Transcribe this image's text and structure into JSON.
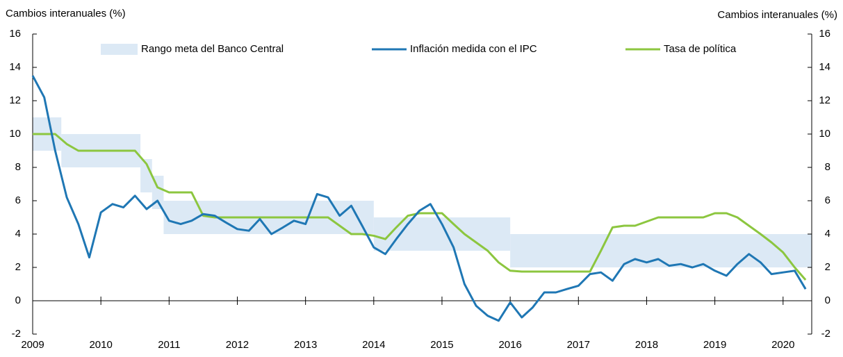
{
  "chart_data": {
    "type": "line",
    "y_label": "Cambios interanuales (%)",
    "y2_label": "Cambios interanuales (%)",
    "x": [
      2009.0,
      2009.17,
      2009.33,
      2009.5,
      2009.67,
      2009.83,
      2010.0,
      2010.17,
      2010.33,
      2010.5,
      2010.67,
      2010.83,
      2011.0,
      2011.17,
      2011.33,
      2011.5,
      2011.67,
      2011.83,
      2012.0,
      2012.17,
      2012.33,
      2012.5,
      2012.67,
      2012.83,
      2013.0,
      2013.17,
      2013.33,
      2013.5,
      2013.67,
      2013.83,
      2014.0,
      2014.17,
      2014.33,
      2014.5,
      2014.67,
      2014.83,
      2015.0,
      2015.17,
      2015.33,
      2015.5,
      2015.67,
      2015.83,
      2016.0,
      2016.17,
      2016.33,
      2016.5,
      2016.67,
      2016.83,
      2017.0,
      2017.17,
      2017.33,
      2017.5,
      2017.67,
      2017.83,
      2018.0,
      2018.17,
      2018.33,
      2018.5,
      2018.67,
      2018.83,
      2019.0,
      2019.17,
      2019.33,
      2019.5,
      2019.67,
      2019.83,
      2020.0,
      2020.17,
      2020.33
    ],
    "series": [
      {
        "name": "Inflación medida con el IPC",
        "color": "#1f77b4",
        "values": [
          13.5,
          12.2,
          9.0,
          6.2,
          4.6,
          2.6,
          5.3,
          5.8,
          5.6,
          6.3,
          5.5,
          6.0,
          4.8,
          4.6,
          4.8,
          5.2,
          5.1,
          4.7,
          4.3,
          4.2,
          4.9,
          4.0,
          4.4,
          4.8,
          4.6,
          6.4,
          6.2,
          5.1,
          5.7,
          4.5,
          3.2,
          2.8,
          3.7,
          4.6,
          5.4,
          5.8,
          4.6,
          3.2,
          1.0,
          -0.3,
          -0.9,
          -1.2,
          -0.1,
          -1.0,
          -0.4,
          0.5,
          0.5,
          0.7,
          0.9,
          1.6,
          1.7,
          1.2,
          2.2,
          2.5,
          2.3,
          2.5,
          2.1,
          2.2,
          2.0,
          2.2,
          1.8,
          1.5,
          2.2,
          2.8,
          2.3,
          1.6,
          1.7,
          1.8,
          0.7
        ]
      },
      {
        "name": "Tasa de política",
        "color": "#8cc63f",
        "values": [
          10,
          10,
          10,
          9.4,
          9,
          9,
          9,
          9,
          9,
          9,
          8.2,
          6.8,
          6.5,
          6.5,
          6.5,
          5.1,
          5,
          5,
          5,
          5,
          5,
          5,
          5,
          5,
          5,
          5,
          5,
          4.5,
          4,
          4,
          3.9,
          3.7,
          4.4,
          5.1,
          5.25,
          5.25,
          5.25,
          4.6,
          4.0,
          3.5,
          3.0,
          2.3,
          1.8,
          1.75,
          1.75,
          1.75,
          1.75,
          1.75,
          1.75,
          1.75,
          3.0,
          4.4,
          4.5,
          4.5,
          4.75,
          5.0,
          5.0,
          5.0,
          5.0,
          5.0,
          5.25,
          5.25,
          5.0,
          4.5,
          4.0,
          3.5,
          2.9,
          2.0,
          1.25
        ]
      }
    ],
    "band": {
      "name": "Rango meta del Banco Central",
      "color": "#dce9f5",
      "start": [
        2009.0,
        2009.42,
        2010.58,
        2010.75,
        2010.92,
        2014.0,
        2016.0
      ],
      "end": [
        2009.42,
        2010.58,
        2010.75,
        2010.92,
        2014.0,
        2016.0,
        2020.42
      ],
      "low": [
        9,
        8,
        6.5,
        5.5,
        4,
        3,
        2
      ],
      "high": [
        11,
        10,
        8.5,
        7.5,
        6,
        5,
        4
      ]
    },
    "xlim": [
      2009,
      2020.42
    ],
    "xticks": [
      2009,
      2010,
      2011,
      2012,
      2013,
      2014,
      2015,
      2016,
      2017,
      2018,
      2019,
      2020
    ],
    "ylim": [
      -2,
      16
    ],
    "yticks": [
      -2,
      0,
      2,
      4,
      6,
      8,
      10,
      12,
      14,
      16
    ],
    "y2lim": [
      -2,
      16
    ],
    "y2ticks": [
      -2,
      0,
      2,
      4,
      6,
      8,
      10,
      12,
      14,
      16
    ]
  }
}
